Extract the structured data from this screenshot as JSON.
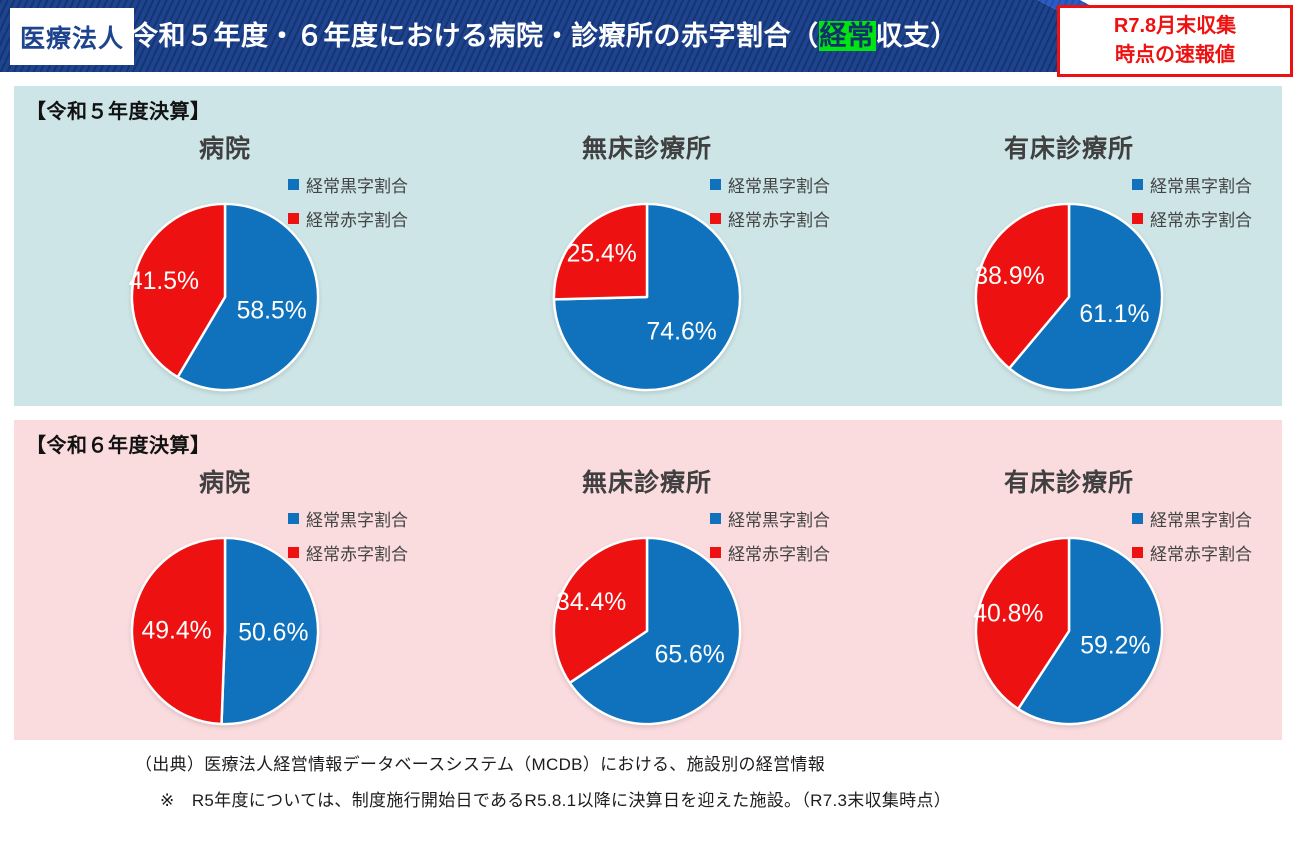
{
  "header": {
    "badge": "医療法人",
    "title_pre": "令和５年度・６年度における病院・診療所の赤字割合（",
    "title_highlight": "経常",
    "title_post": "収支）",
    "note_line1": "R7.8月末収集",
    "note_line2": "時点の速報値"
  },
  "colors": {
    "bar_navy": "#1e4490",
    "bar_accent": "#2a5cc8",
    "highlight_green": "#00e412",
    "note_red": "#ee1111",
    "surplus_blue": "#1072bc",
    "deficit_red": "#ee1111",
    "fy5_section_bg": "#cde5e6",
    "fy6_section_bg": "#fadbde"
  },
  "chart_data": [
    {
      "type": "pie",
      "group_label": "【令和５年度決算】",
      "legend_position": "upper-right",
      "charts": [
        {
          "title": "病院",
          "series": [
            {
              "label": "経常黒字割合",
              "value": 58.5,
              "color": "#1072bc"
            },
            {
              "label": "経常赤字割合",
              "value": 41.5,
              "color": "#ee1111"
            }
          ]
        },
        {
          "title": "無床診療所",
          "series": [
            {
              "label": "経常黒字割合",
              "value": 74.6,
              "color": "#1072bc"
            },
            {
              "label": "経常赤字割合",
              "value": 25.4,
              "color": "#ee1111"
            }
          ]
        },
        {
          "title": "有床診療所",
          "series": [
            {
              "label": "経常黒字割合",
              "value": 61.1,
              "color": "#1072bc"
            },
            {
              "label": "経常赤字割合",
              "value": 38.9,
              "color": "#ee1111"
            }
          ]
        }
      ]
    },
    {
      "type": "pie",
      "group_label": "【令和６年度決算】",
      "legend_position": "upper-right",
      "charts": [
        {
          "title": "病院",
          "series": [
            {
              "label": "経常黒字割合",
              "value": 50.6,
              "color": "#1072bc"
            },
            {
              "label": "経常赤字割合",
              "value": 49.4,
              "color": "#ee1111"
            }
          ]
        },
        {
          "title": "無床診療所",
          "series": [
            {
              "label": "経常黒字割合",
              "value": 65.6,
              "color": "#1072bc"
            },
            {
              "label": "経常赤字割合",
              "value": 34.4,
              "color": "#ee1111"
            }
          ]
        },
        {
          "title": "有床診療所",
          "series": [
            {
              "label": "経常黒字割合",
              "value": 59.2,
              "color": "#1072bc"
            },
            {
              "label": "経常赤字割合",
              "value": 40.8,
              "color": "#ee1111"
            }
          ]
        }
      ]
    }
  ],
  "footer": {
    "source": "（出典）医療法人経営情報データベースシステム（MCDB）における、施設別の経営情報",
    "note": "※　R5年度については、制度施行開始日であるR5.8.1以降に決算日を迎えた施設。（R7.3末収集時点）"
  }
}
